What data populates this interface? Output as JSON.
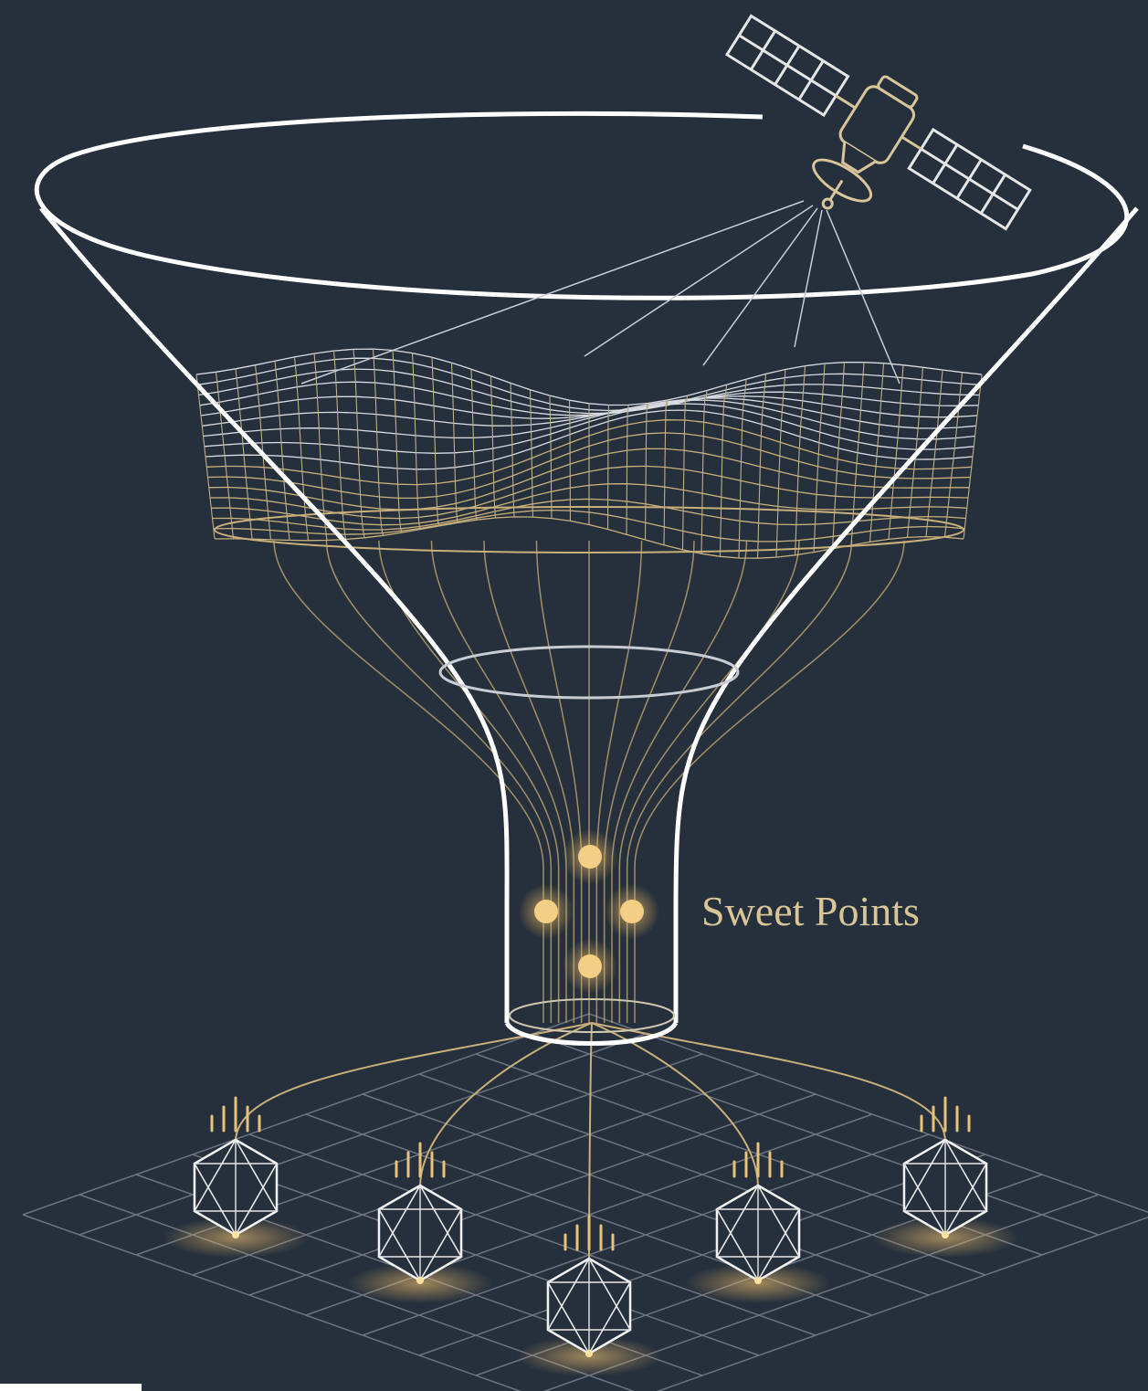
{
  "label": "Sweet Points"
}
